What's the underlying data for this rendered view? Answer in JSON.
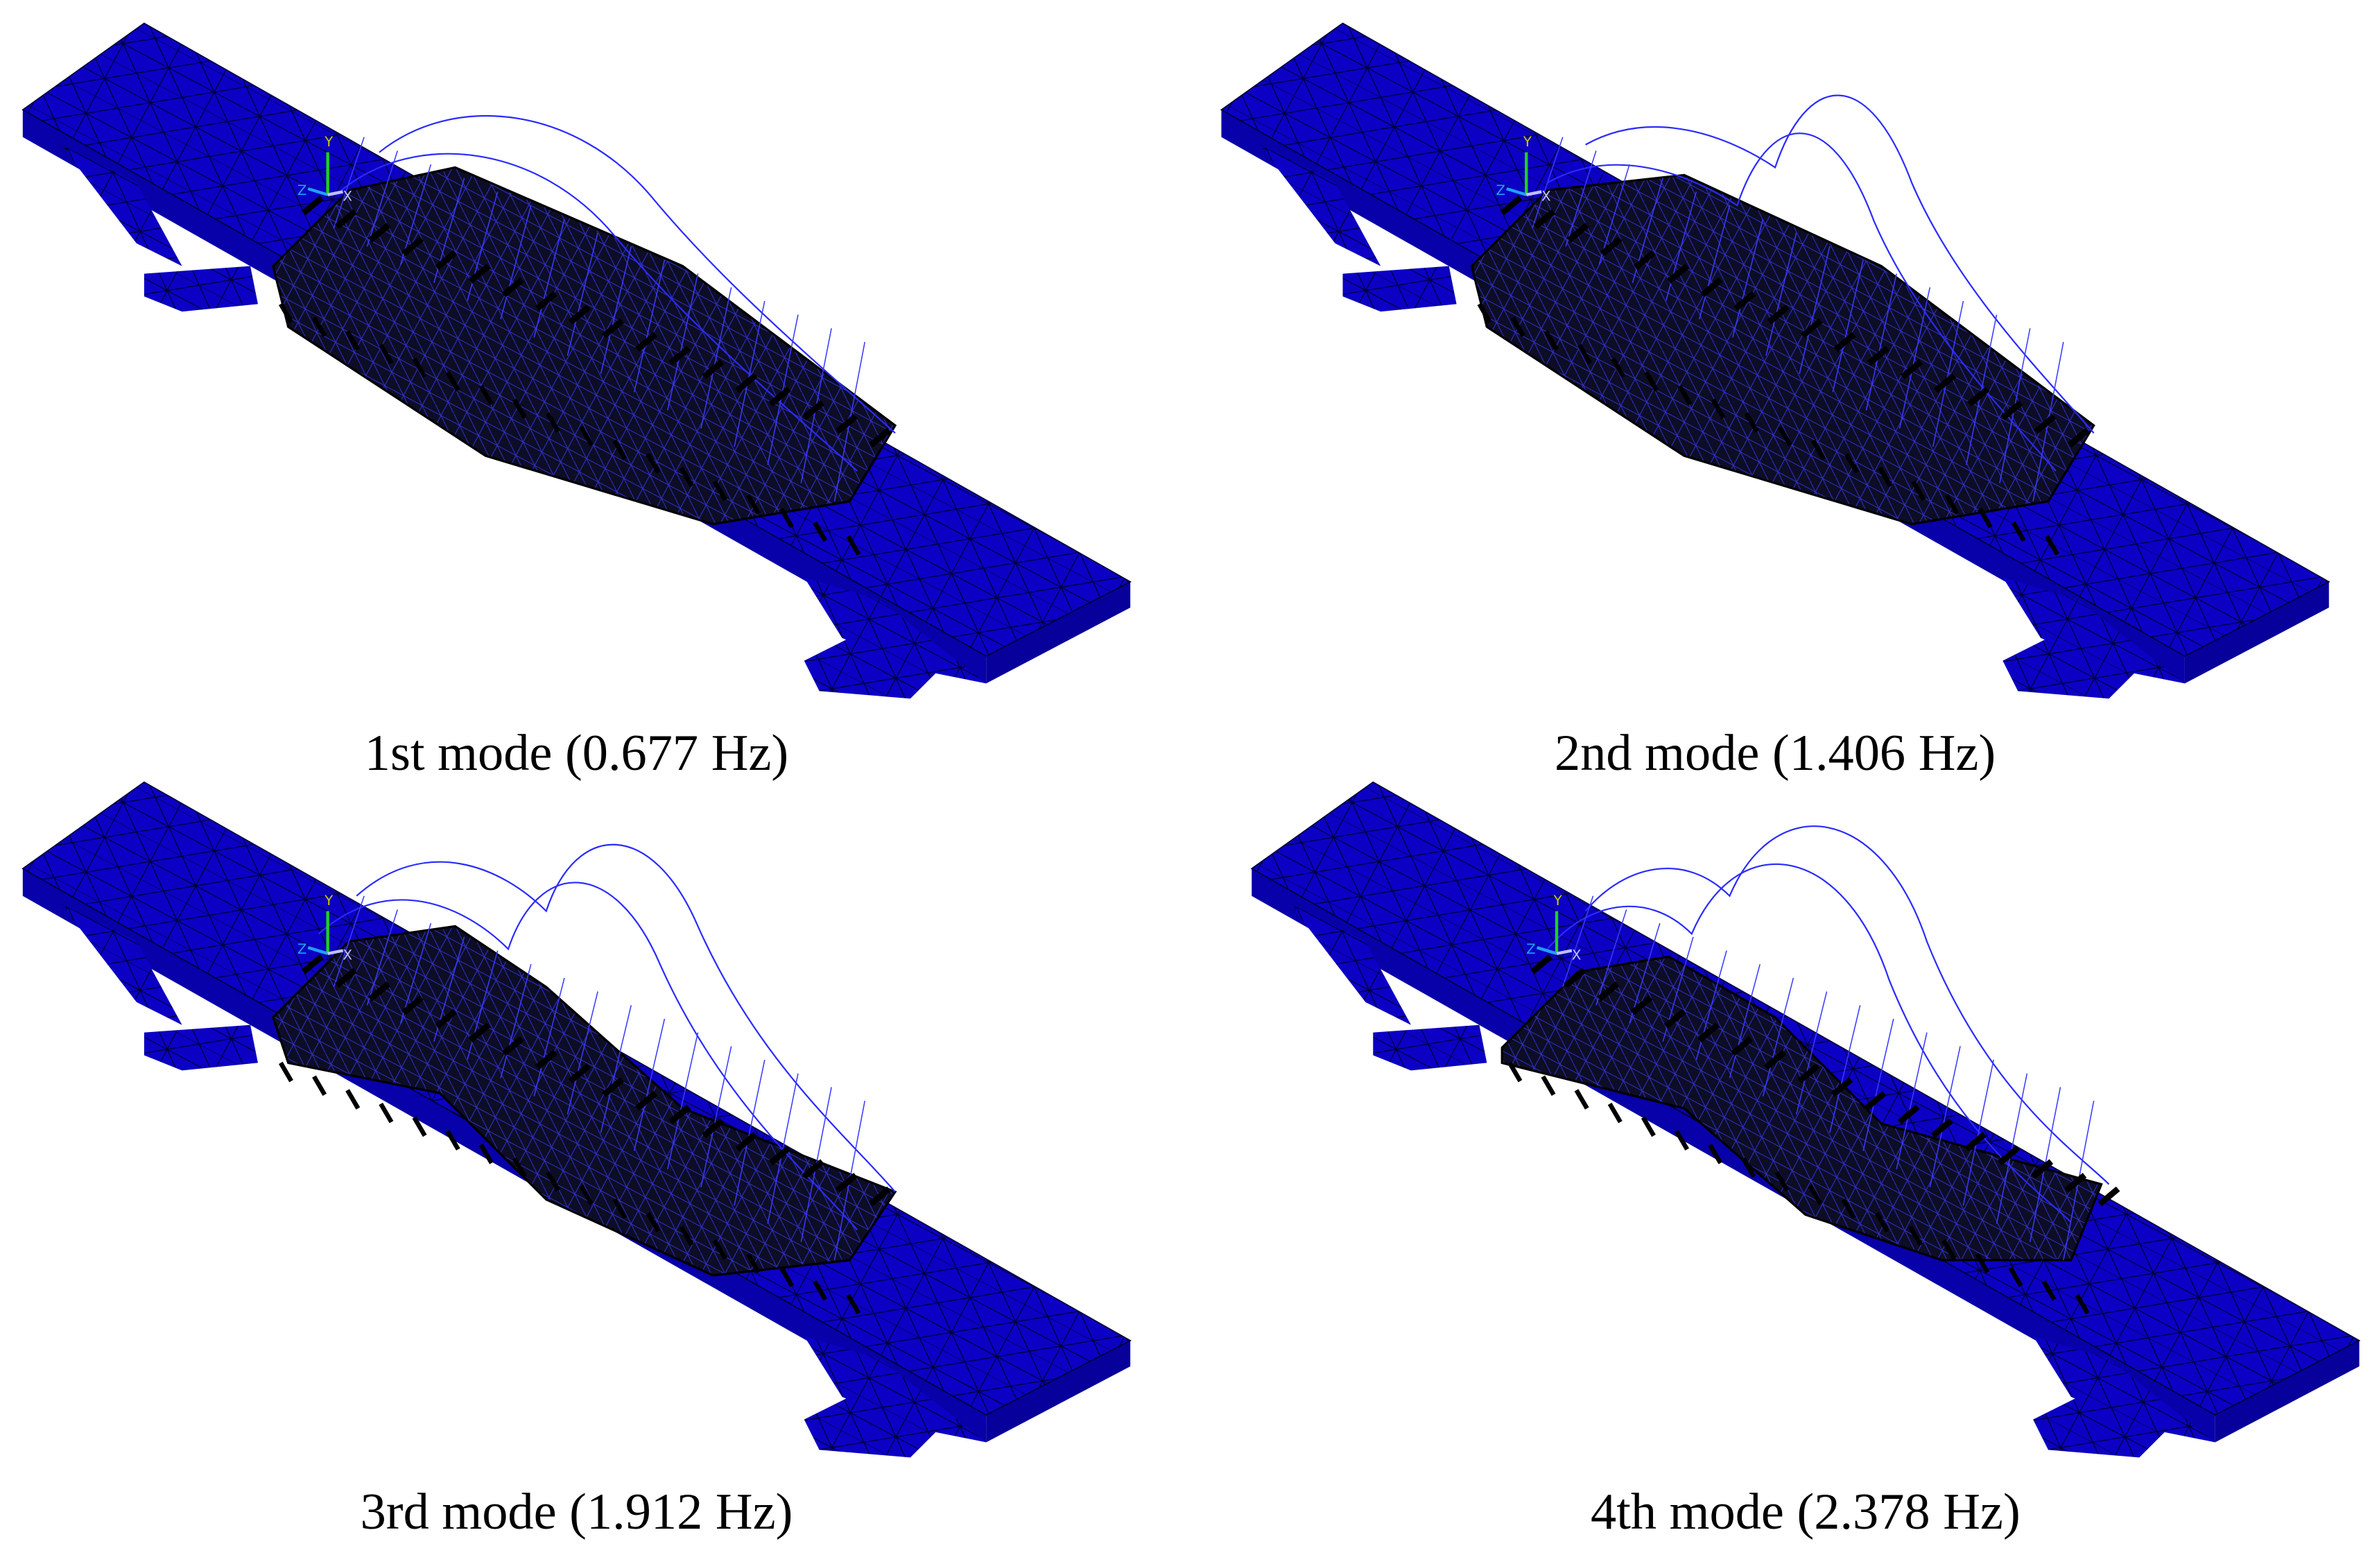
{
  "panels": [
    {
      "caption": "1st mode (0.677 Hz)",
      "axis_labels": [
        "Y",
        "Z",
        "X"
      ]
    },
    {
      "caption": "2nd mode (1.406 Hz)",
      "axis_labels": [
        "Y",
        "Z",
        "X"
      ]
    },
    {
      "caption": "3rd mode (1.912 Hz)",
      "axis_labels": [
        "Y",
        "Z",
        "X"
      ]
    },
    {
      "caption": "4th mode (2.378 Hz)",
      "axis_labels": [
        "Y",
        "Z",
        "X"
      ]
    }
  ]
}
